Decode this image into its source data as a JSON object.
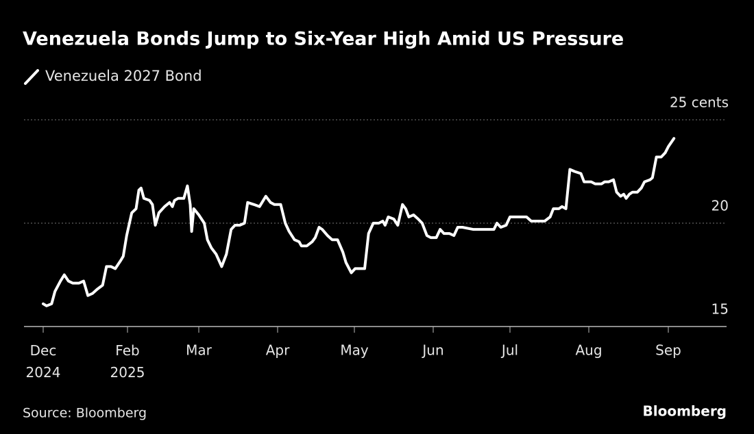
{
  "chart_data": {
    "type": "line",
    "title": "Venezuela Bonds Jump to Six-Year High Amid US Pressure",
    "source": "Source: Bloomberg",
    "brand": "Bloomberg",
    "series": [
      {
        "name": "Venezuela 2027 Bond",
        "color": "#ffffff",
        "x": [
          0.0,
          0.08,
          0.2,
          0.28,
          0.41,
          0.5,
          0.6,
          0.7,
          0.85,
          0.96,
          1.06,
          1.17,
          1.28,
          1.41,
          1.5,
          1.61,
          1.71,
          1.84,
          1.9,
          1.98,
          2.06,
          2.12,
          2.16,
          2.19,
          2.23,
          2.31,
          2.35,
          2.39,
          2.44,
          2.52,
          2.59,
          2.63,
          2.66,
          2.71,
          2.79,
          2.84,
          2.88,
          2.9,
          2.93,
          3.0,
          3.07,
          3.11,
          3.16,
          3.22,
          3.29,
          3.35,
          3.41,
          3.46,
          3.52,
          3.58,
          3.62,
          3.7,
          3.77,
          3.85,
          3.91,
          3.96,
          4.04,
          4.1,
          4.15,
          4.22,
          4.28,
          4.31,
          4.38,
          4.45,
          4.49,
          4.54,
          4.58,
          4.65,
          4.71,
          4.78,
          4.85,
          4.89,
          4.96,
          5.01,
          5.07,
          5.13,
          5.18,
          5.24,
          5.31,
          5.36,
          5.39,
          5.43,
          5.5,
          5.55,
          5.61,
          5.65,
          5.69,
          5.75,
          5.81,
          5.86,
          5.92,
          5.97,
          6.04,
          6.09,
          6.14,
          6.21,
          6.27,
          6.32,
          6.38,
          6.52,
          6.61,
          6.79,
          6.83,
          6.88,
          6.95,
          7.0,
          7.05,
          7.12,
          7.21,
          7.27,
          7.36,
          7.44,
          7.51,
          7.55,
          7.62,
          7.66,
          7.71,
          7.76,
          7.82,
          7.9,
          7.94,
          8.03,
          8.08,
          8.16,
          8.2,
          8.25,
          8.31,
          8.35,
          8.4,
          8.44,
          8.47,
          8.51,
          8.55,
          8.61,
          8.66,
          8.7,
          8.77,
          8.8,
          8.85,
          8.91,
          8.96,
          9.0,
          9.07
        ],
        "values": [
          16.1,
          16.0,
          16.1,
          16.7,
          17.2,
          17.5,
          17.2,
          17.1,
          17.1,
          17.2,
          16.5,
          16.6,
          16.8,
          17.0,
          17.9,
          17.9,
          17.8,
          18.2,
          18.4,
          19.4,
          20.5,
          20.7,
          21.6,
          21.7,
          21.2,
          21.1,
          20.9,
          19.9,
          20.5,
          20.8,
          21.0,
          20.8,
          21.1,
          21.2,
          21.2,
          21.8,
          20.9,
          19.6,
          20.7,
          20.4,
          20.0,
          19.2,
          18.8,
          18.5,
          17.9,
          18.5,
          19.7,
          19.9,
          19.9,
          20.0,
          21.0,
          20.9,
          20.8,
          21.3,
          21.0,
          20.9,
          20.9,
          20.0,
          19.6,
          19.2,
          19.1,
          18.9,
          18.9,
          19.1,
          19.3,
          19.8,
          19.7,
          19.4,
          19.2,
          19.2,
          18.6,
          18.1,
          17.6,
          17.8,
          17.8,
          17.8,
          19.5,
          20.0,
          20.0,
          20.1,
          19.9,
          20.3,
          20.2,
          19.9,
          20.9,
          20.7,
          20.3,
          20.4,
          20.2,
          20.0,
          19.4,
          19.3,
          19.3,
          19.7,
          19.5,
          19.5,
          19.4,
          19.8,
          19.8,
          19.7,
          19.7,
          19.7,
          20.0,
          19.8,
          19.9,
          20.3,
          20.3,
          20.3,
          20.3,
          20.1,
          20.1,
          20.1,
          20.3,
          20.7,
          20.7,
          20.8,
          20.7,
          22.6,
          22.5,
          22.4,
          22.0,
          22.0,
          21.9,
          21.9,
          22.0,
          22.0,
          22.1,
          21.5,
          21.3,
          21.4,
          21.2,
          21.4,
          21.5,
          21.5,
          21.7,
          22.0,
          22.1,
          22.2,
          23.2,
          23.2,
          23.4,
          23.7,
          24.1
        ]
      }
    ],
    "xlim": [
      -0.46,
      9.73
    ],
    "xticks": [
      {
        "value": 0,
        "label": "Dec 2024"
      },
      {
        "value": 2,
        "label": "Feb 2025"
      },
      {
        "value": 3,
        "label": "Mar"
      },
      {
        "value": 4,
        "label": "Apr"
      },
      {
        "value": 5,
        "label": "May"
      },
      {
        "value": 6,
        "label": "Jun"
      },
      {
        "value": 7,
        "label": "Jul"
      },
      {
        "value": 8,
        "label": "Aug"
      },
      {
        "value": 9,
        "label": "Sep"
      }
    ],
    "ylim": [
      15,
      25
    ],
    "yticks": [
      15,
      20,
      {
        "value": 25,
        "label": "25 cents"
      }
    ],
    "grid": true
  }
}
